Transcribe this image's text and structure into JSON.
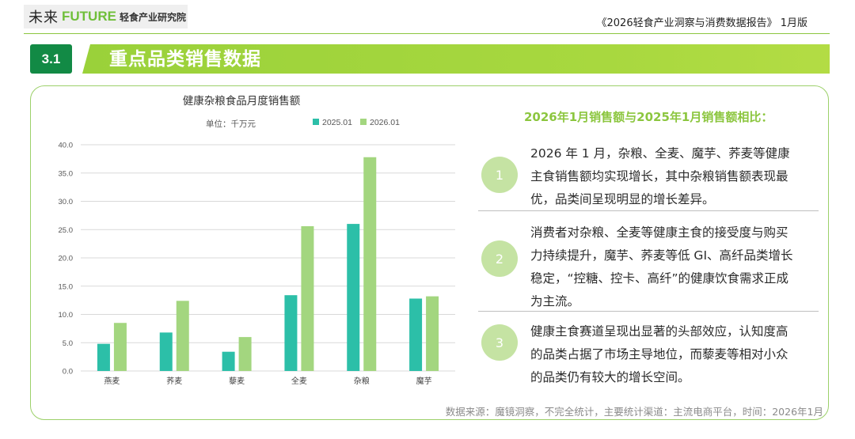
{
  "header": {
    "logo_cn": "未来",
    "logo_en": "FUTURE",
    "logo_sub": "轻食产业研究院",
    "report_title": "《2026轻食产业洞察与消费数据报告》 1月版"
  },
  "section": {
    "number": "3.1",
    "title": "重点品类销售数据"
  },
  "chart_data": {
    "type": "bar",
    "title": "健康杂粮食品月度销售额",
    "unit_label": "单位：千万元",
    "categories": [
      "燕麦",
      "荞麦",
      "藜麦",
      "全麦",
      "杂粮",
      "魔芋"
    ],
    "series": [
      {
        "name": "2025.01",
        "values": [
          4.8,
          6.8,
          3.4,
          13.4,
          26.0,
          12.8
        ],
        "color": "#2cbfa8"
      },
      {
        "name": "2026.01",
        "values": [
          8.5,
          12.4,
          6.0,
          25.6,
          37.8,
          13.2
        ],
        "color": "#a3d67f"
      }
    ],
    "ylim": [
      0,
      40
    ],
    "yticks": [
      "0.0",
      "5.0",
      "10.0",
      "15.0",
      "20.0",
      "25.0",
      "30.0",
      "35.0",
      "40.0"
    ],
    "grid": true,
    "legend": "top"
  },
  "compare": {
    "title": "2026年1月销售额与2025年1月销售额相比：",
    "items": [
      {
        "num": "1",
        "text": "2026 年 1 月，杂粮、全麦、魔芋、荞麦等健康主食销售额均实现增长，其中杂粮销售额表现最优，品类间呈现明显的增长差异。"
      },
      {
        "num": "2",
        "text": "消费者对杂粮、全麦等健康主食的接受度与购买力持续提升，魔芋、荞麦等低 GI、高纤品类增长稳定，“控糖、控卡、高纤”的健康饮食需求正成为主流。"
      },
      {
        "num": "3",
        "text": "健康主食赛道呈现出显著的头部效应，认知度高的品类占据了市场主导地位，而藜麦等相对小众的品类仍有较大的增长空间。"
      }
    ]
  },
  "source": "数据来源：魔镜洞察，不完全统计，主要统计渠道：主流电商平台，时间：2026年1月",
  "colors": {
    "brand_green": "#128a45",
    "accent_green": "#8cc63f"
  }
}
